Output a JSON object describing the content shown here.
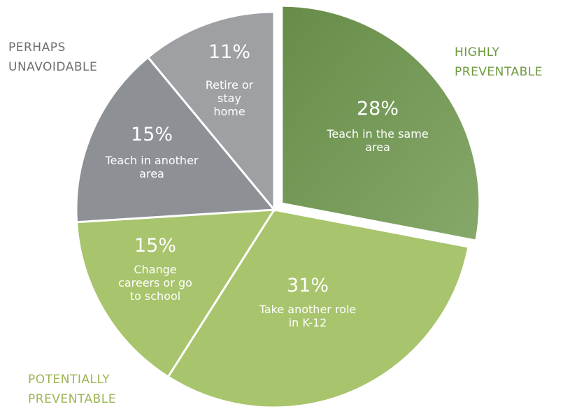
{
  "chart_data": {
    "type": "pie",
    "categories": [
      "Teach in the same area",
      "Take another role in K-12",
      "Change careers or go to school",
      "Teach in another area",
      "Retire or stay home"
    ],
    "values": [
      28,
      31,
      15,
      15,
      11
    ],
    "value_labels": [
      "28%",
      "31%",
      "15%",
      "15%",
      "11%"
    ],
    "colors": [
      "#6f9550",
      "#a8c46c",
      "#a8c46c",
      "#8d9094",
      "#9ea0a4"
    ],
    "annotations": [
      {
        "lines": [
          "HIGHLY",
          "PREVENTABLE"
        ],
        "color": "#6f9a3e"
      },
      {
        "lines": [
          "POTENTIALLY",
          "PREVENTABLE"
        ],
        "color": "#9ab553"
      },
      {
        "lines": [
          "PERHAPS",
          "UNAVOIDABLE"
        ],
        "color": "#6e6e6e"
      }
    ]
  }
}
